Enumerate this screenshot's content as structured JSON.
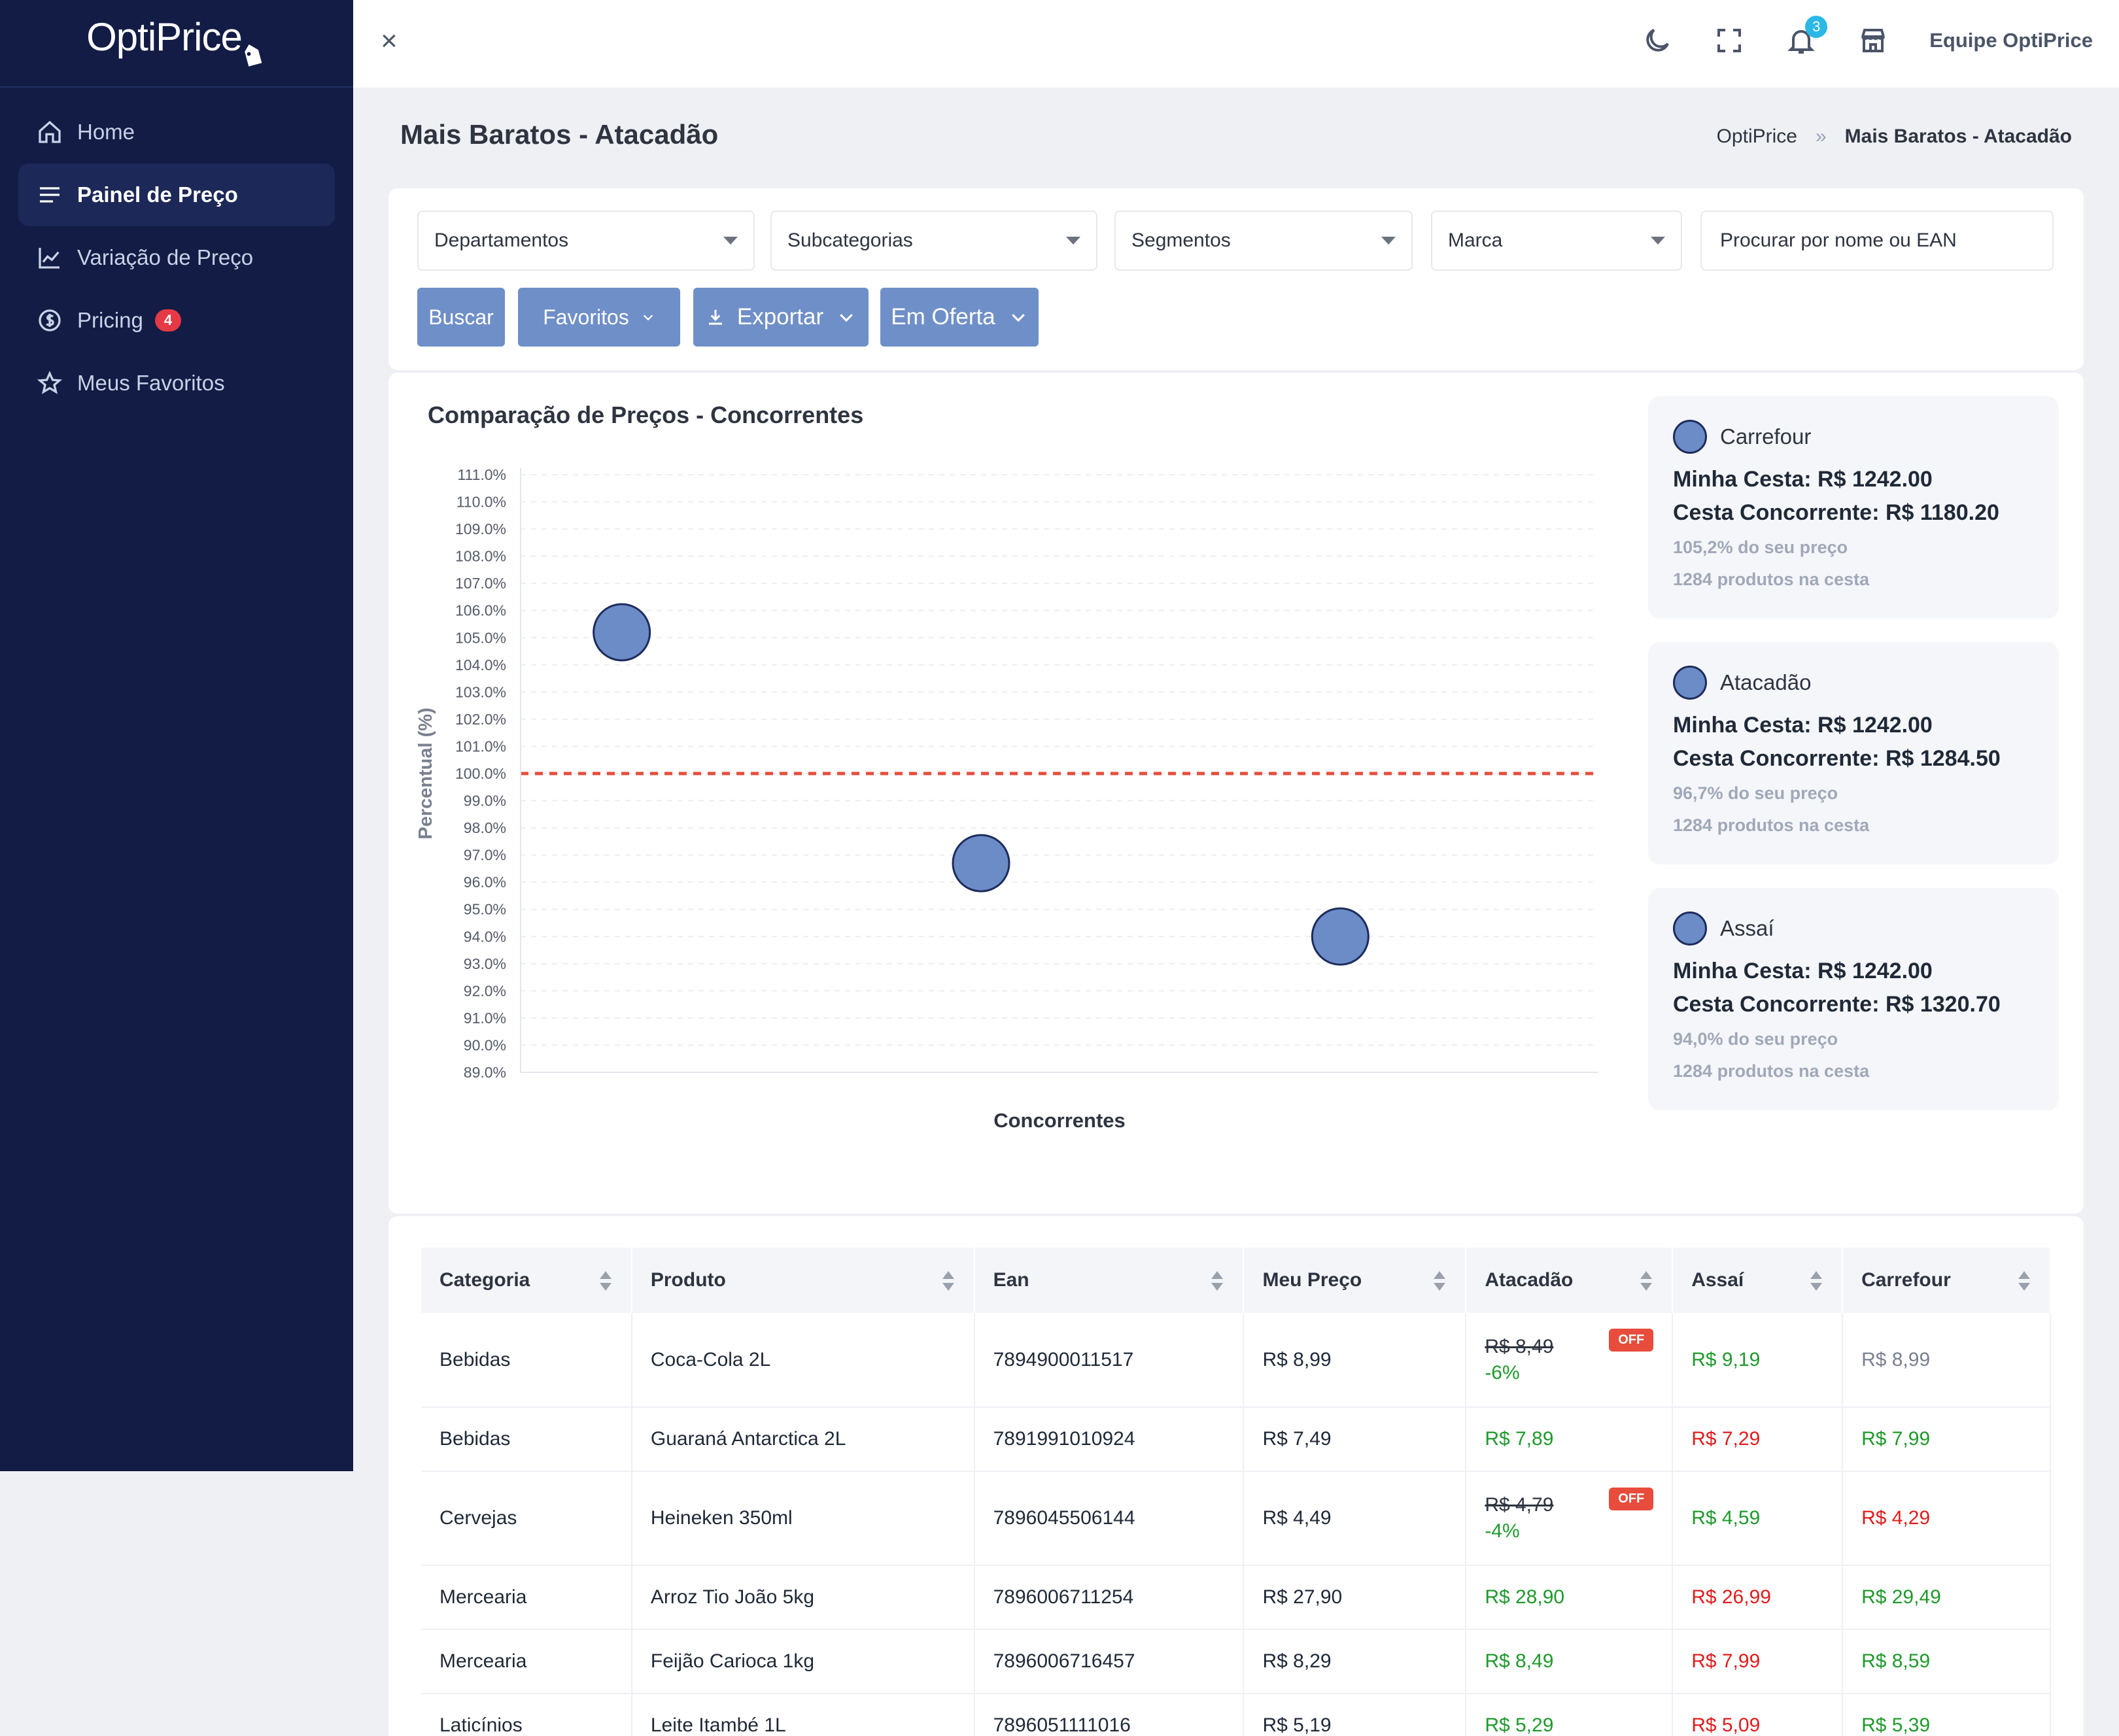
{
  "brand": {
    "name": "OptiPrice"
  },
  "sidebar": {
    "items": [
      {
        "label": "Home",
        "icon": "home-icon"
      },
      {
        "label": "Painel de Preço",
        "icon": "menu-icon",
        "active": true
      },
      {
        "label": "Variação de Preço",
        "icon": "chart-line-icon"
      },
      {
        "label": "Pricing",
        "icon": "dollar-circle-icon",
        "badge": "4"
      },
      {
        "label": "Meus Favoritos",
        "icon": "star-icon"
      }
    ]
  },
  "topbar": {
    "close_label": "×",
    "notifications_count": "3",
    "user_name": "Equipe OptiPrice"
  },
  "page": {
    "title": "Mais Baratos - Atacadão",
    "breadcrumb": {
      "root": "OptiPrice",
      "separator": "»",
      "current": "Mais Baratos - Atacadão"
    }
  },
  "filters": {
    "departamentos": "Departamentos",
    "subcategorias": "Subcategorias",
    "segmentos": "Segmentos",
    "marca": "Marca",
    "search_placeholder": "Procurar por nome ou EAN"
  },
  "actions": {
    "buscar": "Buscar",
    "favoritos": "Favoritos",
    "exportar": "Exportar",
    "em_oferta": "Em Oferta"
  },
  "chart_data": {
    "type": "scatter",
    "title": "Comparação de Preços - Concorrentes",
    "xlabel": "Concorrentes",
    "ylabel": "Percentual (%)",
    "ylim": [
      89,
      111
    ],
    "yticks": [
      "111.0%",
      "110.0%",
      "109.0%",
      "108.0%",
      "107.0%",
      "106.0%",
      "105.0%",
      "104.0%",
      "103.0%",
      "102.0%",
      "101.0%",
      "100.0%",
      "99.0%",
      "98.0%",
      "97.0%",
      "96.0%",
      "95.0%",
      "94.0%",
      "93.0%",
      "92.0%",
      "91.0%",
      "90.0%",
      "89.0%"
    ],
    "reference_line": 100,
    "grid": true,
    "points": [
      {
        "category": "Carrefour",
        "value": 105.2
      },
      {
        "category": "Atacadão",
        "value": 96.7
      },
      {
        "category": "Assaí",
        "value": 94.0
      }
    ],
    "colors": {
      "point": "#6b8cc6",
      "point_border": "#1e2b5c",
      "reference": "#e74c3c"
    }
  },
  "competitors": [
    {
      "name": "Carrefour",
      "minha_cesta": "Minha Cesta: R$ 1242.00",
      "cesta_concorrente": "Cesta Concorrente: R$ 1180.20",
      "percent": "105,2% do seu preço",
      "produtos": "1284 produtos na cesta"
    },
    {
      "name": "Atacadão",
      "minha_cesta": "Minha Cesta: R$ 1242.00",
      "cesta_concorrente": "Cesta Concorrente: R$ 1284.50",
      "percent": "96,7% do seu preço",
      "produtos": "1284 produtos na cesta"
    },
    {
      "name": "Assaí",
      "minha_cesta": "Minha Cesta: R$ 1242.00",
      "cesta_concorrente": "Cesta Concorrente: R$ 1320.70",
      "percent": "94,0% do seu preço",
      "produtos": "1284 produtos na cesta"
    }
  ],
  "table": {
    "headers": [
      "Categoria",
      "Produto",
      "Ean",
      "Meu Preço",
      "Atacadão",
      "Assaí",
      "Carrefour"
    ],
    "off_label": "OFF",
    "rows": [
      {
        "categoria": "Bebidas",
        "produto": "Coca-Cola 2L",
        "ean": "7894900011517",
        "meu_preco": "R$ 8,99",
        "atacadao": "R$ 8,49",
        "atacadao_old": true,
        "atacadao_pct": "-6%",
        "assai": "R$ 9,19",
        "assai_c": "g",
        "carrefour": "R$ 8,99",
        "carrefour_c": "gray"
      },
      {
        "categoria": "Bebidas",
        "produto": "Guaraná Antarctica 2L",
        "ean": "7891991010924",
        "meu_preco": "R$ 7,49",
        "atacadao": "R$ 7,89",
        "atacadao_c": "g",
        "assai": "R$ 7,29",
        "assai_c": "r",
        "carrefour": "R$ 7,99",
        "carrefour_c": "g"
      },
      {
        "categoria": "Cervejas",
        "produto": "Heineken 350ml",
        "ean": "7896045506144",
        "meu_preco": "R$ 4,49",
        "atacadao": "R$ 4,79",
        "atacadao_old": true,
        "atacadao_pct": "-4%",
        "assai": "R$ 4,59",
        "assai_c": "g",
        "carrefour": "R$ 4,29",
        "carrefour_c": "r"
      },
      {
        "categoria": "Mercearia",
        "produto": "Arroz Tio João 5kg",
        "ean": "7896006711254",
        "meu_preco": "R$ 27,90",
        "atacadao": "R$ 28,90",
        "atacadao_c": "g",
        "assai": "R$ 26,99",
        "assai_c": "r",
        "carrefour": "R$ 29,49",
        "carrefour_c": "g"
      },
      {
        "categoria": "Mercearia",
        "produto": "Feijão Carioca 1kg",
        "ean": "7896006716457",
        "meu_preco": "R$ 8,29",
        "atacadao": "R$ 8,49",
        "atacadao_c": "g",
        "assai": "R$ 7,99",
        "assai_c": "r",
        "carrefour": "R$ 8,59",
        "carrefour_c": "g"
      },
      {
        "categoria": "Laticínios",
        "produto": "Leite Itambé 1L",
        "ean": "7896051111016",
        "meu_preco": "R$ 5,19",
        "atacadao": "R$ 5,29",
        "atacadao_c": "g",
        "assai": "R$ 5,09",
        "assai_c": "r",
        "carrefour": "R$ 5,39",
        "carrefour_c": "g"
      }
    ]
  }
}
